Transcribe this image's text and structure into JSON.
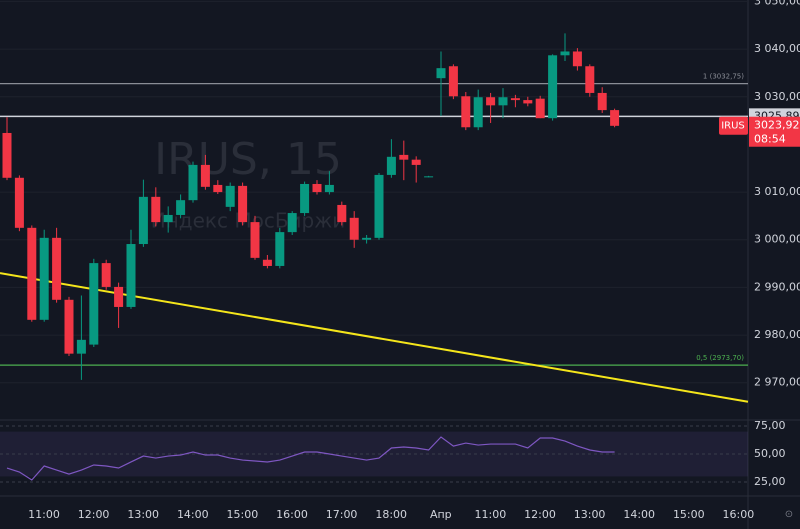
{
  "chart_data": {
    "type": "candlestick",
    "watermark_title": "IRUS, 15",
    "watermark_subtitle": "Индекс МосБиржи",
    "symbol": "IRUS",
    "countdown": "08:54",
    "up_color": "#089981",
    "down_color": "#f23645",
    "open": [
      3022.4,
      3013.0,
      3002.5,
      2983.2,
      3000.4,
      2987.4,
      2976.1,
      2978.0,
      2995.1,
      2990.1,
      2985.9,
      2999.1,
      3009.0,
      3003.7,
      3005.2,
      3008.3,
      3015.7,
      3011.5,
      3006.9,
      3011.3,
      3003.7,
      2995.8,
      2994.5,
      3001.6,
      3005.6,
      3011.7,
      3010.0,
      3007.3,
      3004.6,
      3000.0,
      3000.4,
      3013.6,
      3017.8,
      3016.8,
      3013.2,
      3033.9,
      3036.4,
      3030.1,
      3023.6,
      3029.9,
      3028.2,
      3029.7,
      3029.3,
      3029.6,
      3025.5,
      3038.7,
      3039.5,
      3036.4,
      3030.8,
      3027.2
    ],
    "high": [
      3025.7,
      3013.5,
      3003.0,
      3002.1,
      3002.5,
      2988.0,
      2988.3,
      2996.0,
      2995.8,
      2991.0,
      3002.1,
      3012.6,
      3011.0,
      3007.0,
      3009.5,
      3016.4,
      3017.8,
      3012.5,
      3012.0,
      3012.0,
      3005.0,
      2996.8,
      3002.5,
      3006.0,
      3012.2,
      3012.5,
      3014.4,
      3008.0,
      3006.0,
      3001.0,
      3014.0,
      3021.1,
      3020.8,
      3017.5,
      3013.4,
      3039.5,
      3036.8,
      3031.0,
      3031.5,
      3030.8,
      3031.8,
      3030.4,
      3030.0,
      3030.2,
      3038.9,
      3043.3,
      3040.2,
      3036.8,
      3032.0,
      3027.5
    ],
    "low": [
      3012.5,
      3001.8,
      2982.8,
      2982.8,
      2986.8,
      2975.6,
      2970.6,
      2977.5,
      2989.5,
      2981.5,
      2985.5,
      2998.5,
      3002.8,
      3001.5,
      3004.5,
      3007.8,
      3010.5,
      3009.6,
      3006.0,
      3003.0,
      2995.8,
      2994.0,
      2994.0,
      3001.0,
      3005.0,
      3009.5,
      3009.5,
      3003.0,
      2998.3,
      2999.2,
      3000.0,
      3013.0,
      3012.5,
      3012.0,
      3013.1,
      3026.0,
      3029.5,
      3023.0,
      3023.0,
      3024.5,
      3025.5,
      3027.8,
      3028.0,
      3025.5,
      3025.0,
      3037.5,
      3035.5,
      3030.0,
      3026.6,
      3023.6
    ],
    "close": [
      3013.0,
      3002.5,
      2983.2,
      3000.4,
      2987.4,
      2976.1,
      2979.0,
      2995.1,
      2990.1,
      2985.9,
      2999.1,
      3009.0,
      3003.7,
      3005.2,
      3008.3,
      3015.7,
      3011.1,
      3010.0,
      3011.3,
      3003.7,
      2996.2,
      2994.5,
      3001.6,
      3005.6,
      3011.7,
      3010.0,
      3011.5,
      3003.7,
      3000.0,
      3000.4,
      3013.6,
      3017.4,
      3016.8,
      3015.7,
      3013.3,
      3036.0,
      3030.1,
      3023.6,
      3029.9,
      3028.2,
      3029.9,
      3029.3,
      3028.6,
      3025.5,
      3038.7,
      3039.5,
      3036.4,
      3030.8,
      3027.2,
      3023.9
    ],
    "ylim": [
      2962.6,
      3050.3
    ],
    "yticks": [
      {
        "value": 3050,
        "label": "3 050,00"
      },
      {
        "value": 3040,
        "label": "3 040,00"
      },
      {
        "value": 3030,
        "label": "3 030,00"
      },
      {
        "value": 3010,
        "label": "3 010,00"
      },
      {
        "value": 3000,
        "label": "3 000,00"
      },
      {
        "value": 2990,
        "label": "2 990,00"
      },
      {
        "value": 2980,
        "label": "2 980,00"
      },
      {
        "value": 2970,
        "label": "2 970,00"
      }
    ],
    "x_labels": [
      "11:00",
      "12:00",
      "13:00",
      "14:00",
      "15:00",
      "16:00",
      "17:00",
      "18:00",
      "Апр",
      "11:00",
      "12:00",
      "13:00",
      "14:00",
      "15:00",
      "16:00"
    ],
    "levels": [
      {
        "value": 3032.75,
        "label": "1 (3032,75)",
        "color": "#8a8d96"
      },
      {
        "value": 2973.7,
        "label": "0,5 (2973,70)",
        "color": "#4caf50"
      }
    ],
    "current_line": {
      "value": 3025.89,
      "label": "3025,89",
      "color": "#d1d4dc"
    },
    "last_price": {
      "value": 3023.92,
      "label": "3023,92"
    },
    "trendline": {
      "values": [
        2993.0,
        2966.0
      ],
      "color": "#f5e61b"
    },
    "rsi": {
      "color": "#7e57c2",
      "values": [
        37.5,
        33.9,
        26.8,
        39.3,
        35.7,
        32.1,
        35.7,
        40.2,
        39.3,
        37.5,
        42.9,
        48.2,
        46.4,
        48.2,
        49.1,
        51.8,
        49.1,
        49.1,
        46.4,
        44.6,
        43.8,
        42.9,
        44.6,
        48.2,
        51.8,
        51.8,
        50.0,
        48.2,
        46.4,
        44.6,
        46.4,
        55.4,
        56.3,
        55.4,
        53.6,
        65.2,
        57.1,
        59.8,
        58.0,
        58.9,
        58.9,
        58.9,
        55.4,
        64.3,
        64.3,
        61.6,
        57.1,
        53.6,
        51.8,
        51.8
      ],
      "ylim": [
        12.5,
        80.4
      ],
      "band": [
        30,
        70
      ],
      "yticks": [
        {
          "value": 75,
          "label": "75,00"
        },
        {
          "value": 50,
          "label": "50,00"
        },
        {
          "value": 25,
          "label": "25,00"
        }
      ]
    }
  }
}
